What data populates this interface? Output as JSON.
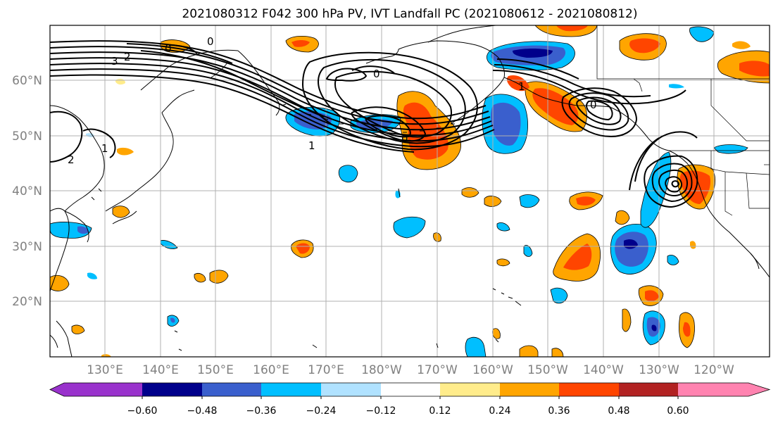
{
  "figure": {
    "title": "2021080312 F042 300 hPa PV, IVT Landfall PC (2021080612 - 2021080812)"
  },
  "map": {
    "lat_labels": [
      "60°N",
      "50°N",
      "40°N",
      "30°N",
      "20°N"
    ],
    "lon_labels": [
      "130°E",
      "140°E",
      "150°E",
      "160°E",
      "170°E",
      "180°W",
      "170°W",
      "160°W",
      "150°W",
      "140°W",
      "130°W",
      "120°W"
    ],
    "contour_labels": [
      "3",
      "2",
      "1",
      "2",
      "1",
      "1",
      "0",
      "0",
      "0",
      "0",
      "0"
    ],
    "line_color": "#000000",
    "grid_color": "#b0b0b0"
  },
  "colorbar": {
    "tick_labels": [
      "−0.60",
      "−0.48",
      "−0.36",
      "−0.24",
      "−0.12",
      "0.12",
      "0.24",
      "0.36",
      "0.48",
      "0.60"
    ],
    "colors": [
      "#9932cc",
      "#00008b",
      "#3a5fcd",
      "#00bfff",
      "#b0e2ff",
      "#ffffff",
      "#ffec8b",
      "#ffa500",
      "#ff4500",
      "#b22222",
      "#ff83b0"
    ]
  }
}
